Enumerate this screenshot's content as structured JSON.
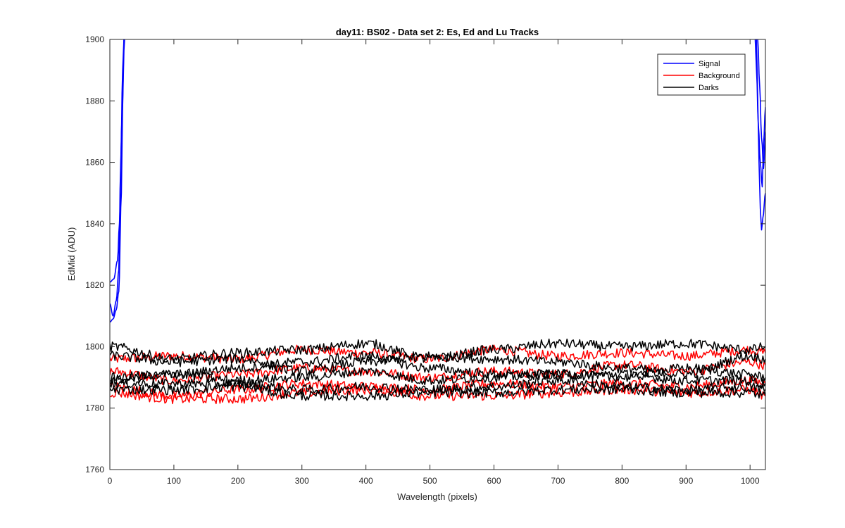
{
  "chart_data": {
    "type": "line",
    "title": "day11: BS02 - Data set 2: Es, Ed and Lu Tracks",
    "xlabel": "Wavelength (pixels)",
    "ylabel": "EdMid (ADU)",
    "xlim": [
      0,
      1024
    ],
    "ylim": [
      1760,
      1900
    ],
    "x_ticks": [
      0,
      100,
      200,
      300,
      400,
      500,
      600,
      700,
      800,
      900,
      1000
    ],
    "y_ticks": [
      1760,
      1780,
      1800,
      1820,
      1840,
      1860,
      1880,
      1900
    ],
    "grid": false,
    "legend_position": "top-right",
    "legend": [
      {
        "label": "Signal",
        "color": "#0000ff"
      },
      {
        "label": "Background",
        "color": "#ff0000"
      },
      {
        "label": "Darks",
        "color": "#000000"
      }
    ],
    "series": [
      {
        "name": "Signal",
        "color": "#0000ff",
        "x": [
          0,
          5,
          10,
          14,
          18,
          20,
          22,
          1010,
          1012,
          1014,
          1016,
          1018,
          1020,
          1024
        ],
        "y": [
          1808,
          1809,
          1812,
          1818,
          1850,
          1880,
          1900,
          1900,
          1880,
          1860,
          1845,
          1838,
          1842,
          1850
        ]
      },
      {
        "name": "Signal",
        "color": "#0000ff",
        "x": [
          0,
          5,
          10,
          14,
          17,
          20,
          22,
          1008,
          1010,
          1013,
          1016,
          1019,
          1021,
          1024
        ],
        "y": [
          1814,
          1810,
          1815,
          1825,
          1860,
          1890,
          1900,
          1900,
          1890,
          1872,
          1860,
          1852,
          1866,
          1878
        ]
      },
      {
        "name": "Signal",
        "color": "#0000ff",
        "x": [
          0,
          6,
          12,
          15,
          19,
          23,
          1012,
          1015,
          1018,
          1021,
          1024
        ],
        "y": [
          1821,
          1822,
          1828,
          1840,
          1875,
          1900,
          1900,
          1885,
          1868,
          1858,
          1870
        ]
      },
      {
        "name": "Background",
        "color": "#ff0000",
        "x": [
          0,
          100,
          200,
          300,
          400,
          500,
          600,
          700,
          800,
          900,
          1000,
          1024
        ],
        "y": [
          1796,
          1797,
          1796,
          1799,
          1798,
          1796,
          1799,
          1797,
          1798,
          1797,
          1799,
          1798
        ]
      },
      {
        "name": "Background",
        "color": "#ff0000",
        "x": [
          0,
          100,
          200,
          300,
          400,
          500,
          600,
          700,
          800,
          900,
          1000,
          1024
        ],
        "y": [
          1792,
          1789,
          1791,
          1793,
          1792,
          1790,
          1792,
          1791,
          1794,
          1792,
          1795,
          1794
        ]
      },
      {
        "name": "Background",
        "color": "#ff0000",
        "x": [
          0,
          100,
          200,
          300,
          400,
          500,
          600,
          700,
          800,
          900,
          1000,
          1024
        ],
        "y": [
          1787,
          1784,
          1786,
          1788,
          1787,
          1786,
          1788,
          1787,
          1788,
          1787,
          1789,
          1788
        ]
      },
      {
        "name": "Background",
        "color": "#ff0000",
        "x": [
          0,
          100,
          200,
          300,
          400,
          500,
          600,
          700,
          800,
          900,
          1000,
          1024
        ],
        "y": [
          1785,
          1783,
          1783,
          1785,
          1786,
          1784,
          1784,
          1785,
          1786,
          1785,
          1786,
          1784
        ]
      },
      {
        "name": "Darks",
        "color": "#000000",
        "x": [
          0,
          100,
          200,
          300,
          400,
          500,
          600,
          700,
          800,
          900,
          1000,
          1024
        ],
        "y": [
          1800,
          1796,
          1798,
          1799,
          1801,
          1796,
          1799,
          1801,
          1800,
          1801,
          1799,
          1800
        ]
      },
      {
        "name": "Darks",
        "color": "#000000",
        "x": [
          0,
          100,
          200,
          300,
          400,
          500,
          600,
          700,
          800,
          900,
          1000,
          1024
        ],
        "y": [
          1797,
          1795,
          1796,
          1792,
          1795,
          1797,
          1796,
          1795,
          1793,
          1791,
          1797,
          1796
        ]
      },
      {
        "name": "Darks",
        "color": "#000000",
        "x": [
          0,
          100,
          200,
          300,
          400,
          500,
          600,
          700,
          800,
          900,
          1000,
          1024
        ],
        "y": [
          1790,
          1791,
          1793,
          1795,
          1797,
          1793,
          1791,
          1791,
          1790,
          1793,
          1791,
          1790
        ]
      },
      {
        "name": "Darks",
        "color": "#000000",
        "x": [
          0,
          100,
          200,
          300,
          400,
          500,
          600,
          700,
          800,
          900,
          1000,
          1024
        ],
        "y": [
          1789,
          1791,
          1789,
          1790,
          1792,
          1789,
          1790,
          1791,
          1791,
          1789,
          1789,
          1788
        ]
      },
      {
        "name": "Darks",
        "color": "#000000",
        "x": [
          0,
          100,
          200,
          300,
          400,
          500,
          600,
          700,
          800,
          900,
          1000,
          1024
        ],
        "y": [
          1788,
          1788,
          1788,
          1786,
          1787,
          1786,
          1787,
          1789,
          1787,
          1786,
          1787,
          1786
        ]
      },
      {
        "name": "Darks",
        "color": "#000000",
        "x": [
          0,
          100,
          200,
          300,
          400,
          500,
          600,
          700,
          800,
          900,
          1000,
          1024
        ],
        "y": [
          1786,
          1786,
          1787,
          1784,
          1784,
          1785,
          1785,
          1786,
          1786,
          1785,
          1785,
          1784
        ]
      }
    ]
  }
}
